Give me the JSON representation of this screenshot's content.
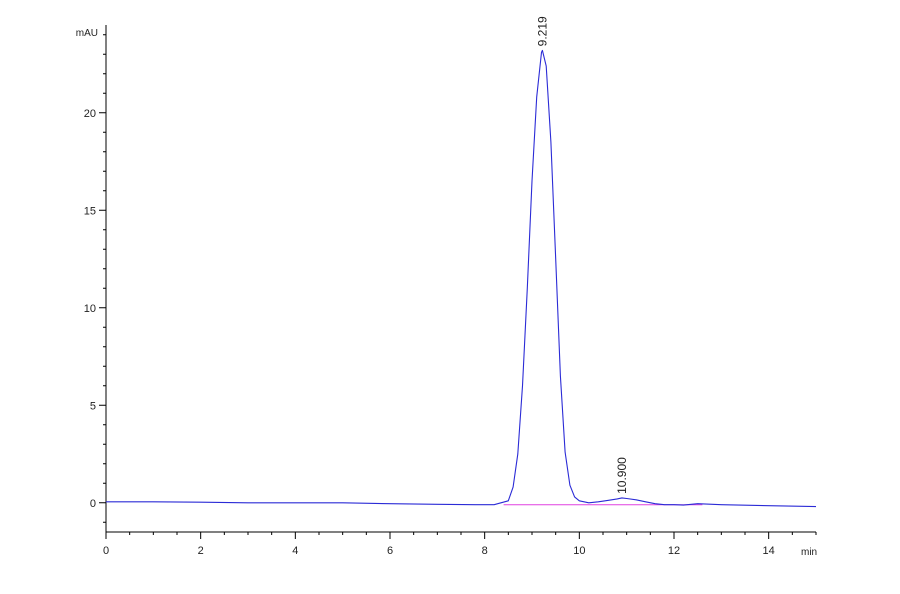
{
  "chart_data": {
    "type": "line",
    "ylabel": "mAU",
    "xlabel": "min",
    "xlim": [
      0,
      15
    ],
    "ylim": [
      -1.5,
      24.5
    ],
    "x_ticks": [
      0,
      2,
      4,
      6,
      8,
      10,
      12,
      14
    ],
    "y_ticks": [
      0,
      5,
      10,
      15,
      20
    ],
    "grid": false,
    "colors": {
      "signal": "#2b2bd6",
      "baseline": "#e040e0",
      "axis": "#000000"
    },
    "peaks": [
      {
        "rt": 9.219,
        "label": "9.219",
        "height": 23.2
      },
      {
        "rt": 10.9,
        "label": "10.900",
        "height": 0.25
      }
    ],
    "series": [
      {
        "x": [
          0,
          1,
          2,
          3,
          4,
          5,
          6,
          7,
          7.8,
          8.2,
          8.5,
          8.6,
          8.7,
          8.8,
          8.9,
          9.0,
          9.1,
          9.2,
          9.219,
          9.3,
          9.4,
          9.5,
          9.6,
          9.7,
          9.8,
          9.9,
          10.0,
          10.2,
          10.4,
          10.6,
          10.8,
          10.9,
          11.0,
          11.2,
          11.4,
          11.6,
          11.8,
          12.0,
          12.2,
          12.5,
          13.0,
          14.0,
          15.0
        ],
        "y": [
          0.05,
          0.05,
          0.03,
          0.0,
          0.0,
          0.0,
          -0.05,
          -0.08,
          -0.1,
          -0.1,
          0.1,
          0.8,
          2.5,
          6.0,
          11.0,
          16.5,
          20.8,
          23.1,
          23.2,
          22.4,
          18.5,
          12.5,
          6.5,
          2.6,
          0.9,
          0.3,
          0.1,
          0.0,
          0.05,
          0.12,
          0.2,
          0.25,
          0.22,
          0.15,
          0.05,
          -0.05,
          -0.1,
          -0.1,
          -0.12,
          -0.05,
          -0.1,
          -0.15,
          -0.2
        ]
      }
    ]
  }
}
